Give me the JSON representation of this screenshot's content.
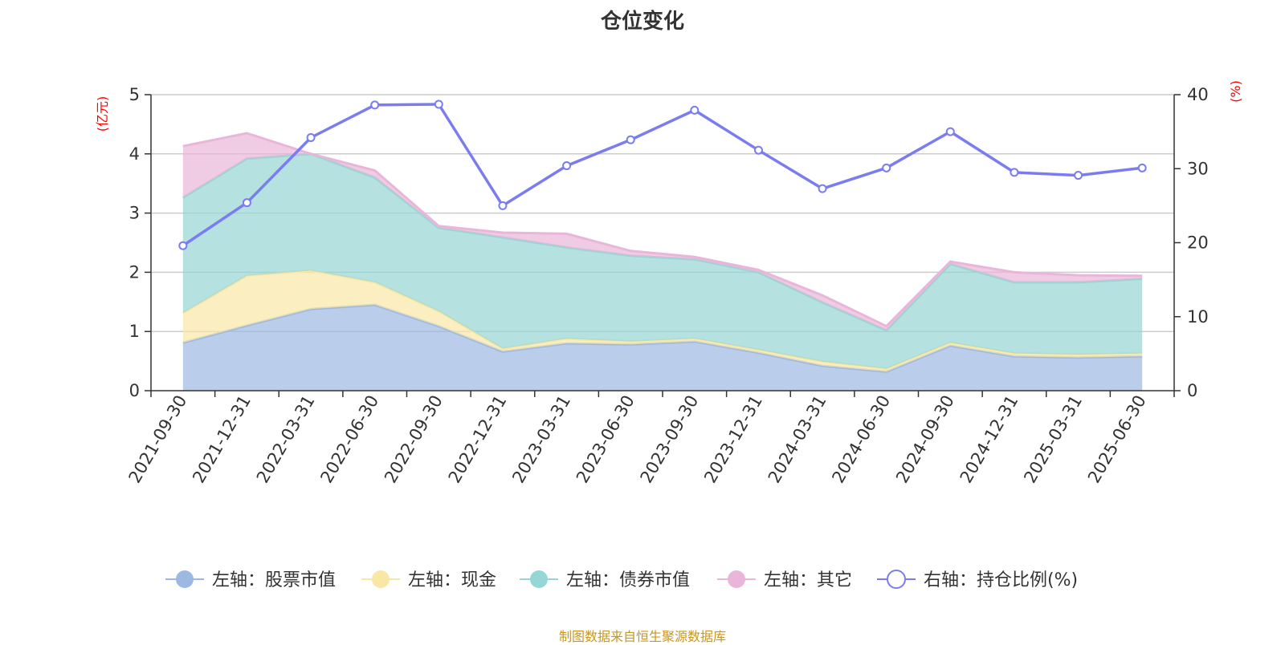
{
  "title": "仓位变化",
  "source_note": "制图数据来自恒生聚源数据库",
  "chart_data": {
    "type": "area",
    "categories": [
      "2021-09-30",
      "2021-12-31",
      "2022-03-31",
      "2022-06-30",
      "2022-09-30",
      "2022-12-31",
      "2023-03-31",
      "2023-06-30",
      "2023-09-30",
      "2023-12-31",
      "2024-03-31",
      "2024-06-30",
      "2024-09-30",
      "2024-12-31",
      "2025-03-31",
      "2025-06-30"
    ],
    "left_axis": {
      "unit": "(亿元)",
      "ylim": [
        0,
        5
      ],
      "ticks": [
        "0",
        "1",
        "2",
        "3",
        "4",
        "5"
      ]
    },
    "right_axis": {
      "unit": "(%)",
      "ylim": [
        0,
        40
      ],
      "ticks": [
        "0",
        "10",
        "20",
        "30",
        "40"
      ]
    },
    "stacked": true,
    "grid": true,
    "legend_position": "bottom",
    "series": [
      {
        "name": "左轴：股票市值",
        "axis": "left",
        "kind": "area",
        "color": "#9db9e3",
        "values": [
          0.81,
          1.1,
          1.38,
          1.45,
          1.09,
          0.66,
          0.8,
          0.78,
          0.83,
          0.64,
          0.42,
          0.32,
          0.76,
          0.58,
          0.56,
          0.58
        ]
      },
      {
        "name": "左轴：现金",
        "axis": "left",
        "kind": "area",
        "color": "#f9e7a6",
        "values": [
          0.5,
          0.84,
          0.65,
          0.38,
          0.25,
          0.05,
          0.08,
          0.05,
          0.05,
          0.05,
          0.07,
          0.05,
          0.05,
          0.05,
          0.05,
          0.05
        ]
      },
      {
        "name": "左轴：债券市值",
        "axis": "left",
        "kind": "area",
        "color": "#96d6d4",
        "values": [
          1.95,
          1.98,
          1.97,
          1.77,
          1.41,
          1.88,
          1.54,
          1.45,
          1.34,
          1.31,
          1.0,
          0.65,
          1.33,
          1.2,
          1.22,
          1.26
        ]
      },
      {
        "name": "左轴：其它",
        "axis": "left",
        "kind": "area",
        "color": "#e9b6d9",
        "values": [
          0.87,
          0.43,
          0.0,
          0.12,
          0.03,
          0.08,
          0.23,
          0.08,
          0.04,
          0.04,
          0.12,
          0.07,
          0.04,
          0.17,
          0.12,
          0.05
        ]
      },
      {
        "name": "右轴：持仓比例(%)",
        "axis": "right",
        "kind": "line",
        "color": "#7a7cf0",
        "values": [
          19.6,
          25.4,
          34.2,
          38.6,
          38.7,
          25.0,
          30.4,
          33.9,
          37.9,
          32.5,
          27.3,
          30.1,
          35.0,
          29.5,
          29.1,
          30.1
        ]
      }
    ]
  }
}
